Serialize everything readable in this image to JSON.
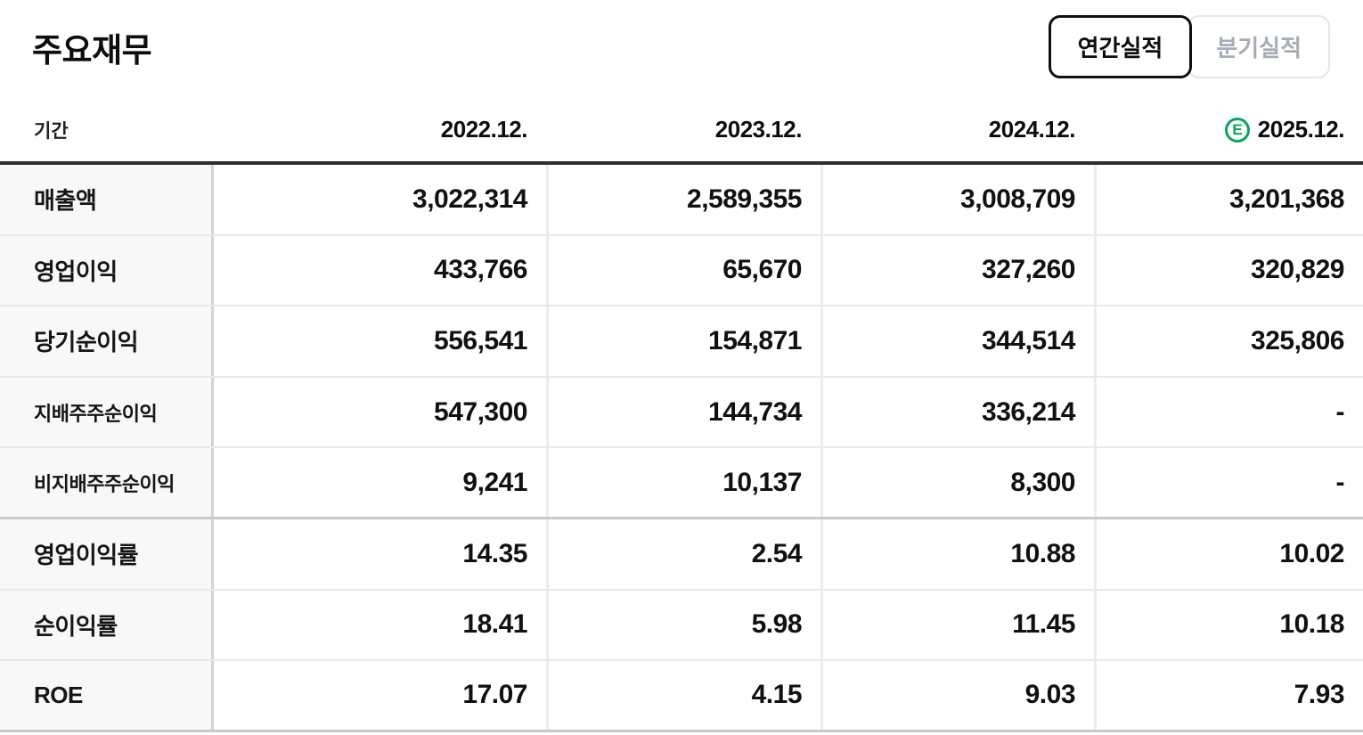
{
  "header": {
    "title": "주요재무",
    "toggle": {
      "annual_label": "연간실적",
      "quarterly_label": "분기실적",
      "selected": "연간실적"
    }
  },
  "table": {
    "period_label": "기간",
    "columns": [
      "2022.12.",
      "2023.12.",
      "2024.12.",
      "2025.12."
    ],
    "estimate_badge": "E",
    "rows": [
      {
        "label": "매출액",
        "type": "main",
        "values": [
          "3,022,314",
          "2,589,355",
          "3,008,709",
          "3,201,368"
        ]
      },
      {
        "label": "영업이익",
        "type": "main",
        "values": [
          "433,766",
          "65,670",
          "327,260",
          "320,829"
        ]
      },
      {
        "label": "당기순이익",
        "type": "main",
        "values": [
          "556,541",
          "154,871",
          "344,514",
          "325,806"
        ]
      },
      {
        "label": "지배주주순이익",
        "type": "sub",
        "values": [
          "547,300",
          "144,734",
          "336,214",
          "-"
        ]
      },
      {
        "label": "비지배주주순이익",
        "type": "sub",
        "values": [
          "9,241",
          "10,137",
          "8,300",
          "-"
        ],
        "group_end": true
      },
      {
        "label": "영업이익률",
        "type": "main",
        "values": [
          "14.35",
          "2.54",
          "10.88",
          "10.02"
        ]
      },
      {
        "label": "순이익률",
        "type": "main",
        "values": [
          "18.41",
          "5.98",
          "11.45",
          "10.18"
        ]
      },
      {
        "label": "ROE",
        "type": "main",
        "values": [
          "17.07",
          "4.15",
          "9.03",
          "7.93"
        ]
      }
    ]
  },
  "colors": {
    "estimate_green": "#0aa45f",
    "table_top_border": "#2e2e2e",
    "row_divider": "#e9e9e9",
    "group_divider": "#c9c9c9",
    "label_column_bg": "#f8f8f8",
    "inactive_text": "#a6adb5"
  }
}
